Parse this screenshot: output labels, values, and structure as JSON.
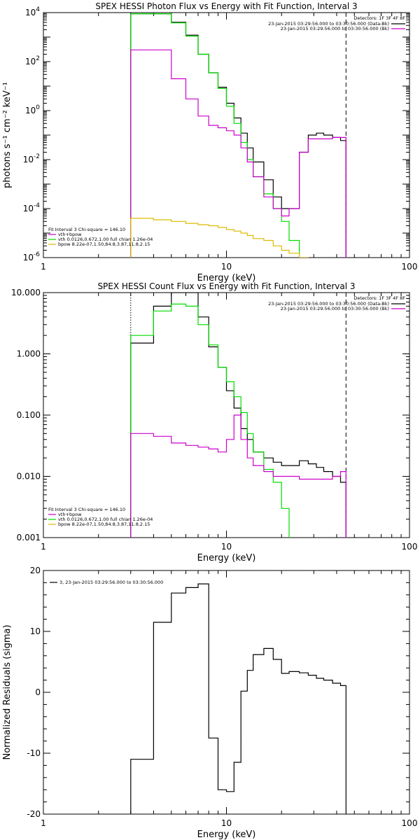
{
  "colors": {
    "total": "#000000",
    "vth": "#00dd00",
    "bpow": "#ddbb00",
    "bk": "#cc00cc",
    "fit": "#cc00cc"
  },
  "chart_data": [
    {
      "id": "photon",
      "type": "line",
      "title": "SPEX HESSI Photon Flux vs Energy with Fit Function, Interval 3",
      "xlabel": "Energy (keV)",
      "ylabel": "photons s⁻¹ cm⁻² keV⁻¹",
      "xscale": "log",
      "yscale": "log",
      "xlim": [
        1,
        100
      ],
      "ylim": [
        1e-06,
        10000.0
      ],
      "xticks": [
        {
          "v": 1,
          "t": "1"
        },
        {
          "v": 10,
          "t": "10"
        },
        {
          "v": 100,
          "t": "100"
        }
      ],
      "yticks": [
        {
          "v": 10000,
          "b": "10",
          "e": "4"
        },
        {
          "v": 100,
          "b": "10",
          "e": "2"
        },
        {
          "v": 1,
          "b": "10",
          "e": "0"
        },
        {
          "v": 0.01,
          "b": "10",
          "e": "-2"
        },
        {
          "v": 0.0001,
          "b": "10",
          "e": "-4"
        },
        {
          "v": 1e-06,
          "b": "10",
          "e": "-6"
        }
      ],
      "vlines": [
        {
          "x": 3,
          "style": "dotted"
        },
        {
          "x": 45,
          "style": "dashed"
        }
      ],
      "legend_tr": {
        "header": "Detectors: 1F 3F 4F 8F",
        "entries": [
          {
            "text": "23-Jan-2015 03:29:56.000 to 03:30:56.000 (Data-Bk)",
            "color": "#000000"
          },
          {
            "text": "23-Jan-2015 03:29:56.000 to 03:30:56.000 (Bk)",
            "color": "#cc00cc"
          }
        ]
      },
      "legend_bl": {
        "header": "Fit Interval 3   Chi-square = 146.10",
        "entries": [
          {
            "text": "vth+bpow",
            "color": "#cc00cc"
          },
          {
            "text": "vth 0.0126,0.672,1.00  full chian 1.26e-04",
            "color": "#00dd00"
          },
          {
            "text": "bpow 8.22e-07,1.50,84.8,3.87,11.8,2.15",
            "color": "#ddbb00"
          }
        ]
      },
      "edges": [
        3,
        4,
        5,
        6,
        7,
        8,
        9,
        10,
        11,
        12,
        13,
        14,
        16,
        18,
        20,
        22,
        25,
        28,
        31,
        34,
        38,
        42,
        45
      ],
      "series": [
        {
          "key": "data",
          "color": "#000000",
          "values": [
            9000,
            9000,
            4000,
            1200,
            200,
            35,
            9,
            2,
            0.5,
            0.12,
            0.03,
            0.008,
            0.0015,
            0.0003,
            0.0001,
            0.0001,
            0.02,
            0.1,
            0.12,
            0.1,
            0.08,
            0.06
          ]
        },
        {
          "key": "vth",
          "color": "#00dd00",
          "values": [
            9000,
            9000,
            3800,
            1100,
            200,
            35,
            8,
            1.5,
            0.3,
            0.05,
            0.01,
            0.002,
            0.0004,
            0.0001,
            3e-05,
            5e-06,
            1e-07
          ]
        },
        {
          "key": "bk",
          "color": "#cc00cc",
          "values": [
            300,
            300,
            20,
            3,
            0.6,
            0.25,
            0.2,
            0.15,
            0.1,
            0.03,
            0.008,
            0.002,
            0.0003,
            0.0001,
            5e-05,
            0.0001,
            0.02,
            0.07,
            0.07,
            0.07,
            0.08,
            0.08
          ]
        },
        {
          "key": "bpow",
          "color": "#ddbb00",
          "values": [
            4e-05,
            3.5e-05,
            3e-05,
            2.5e-05,
            2.2e-05,
            2e-05,
            1.7e-05,
            1.4e-05,
            1.2e-05,
            1e-05,
            8e-06,
            6e-06,
            5e-06,
            3e-06,
            2e-06,
            1.5e-06,
            1e-06
          ]
        }
      ]
    },
    {
      "id": "count",
      "type": "line",
      "title": "SPEX HESSI Count Flux vs Energy with Fit Function, Interval 3",
      "xlabel": "Energy (keV)",
      "ylabel": "",
      "xscale": "log",
      "yscale": "log",
      "xlim": [
        1,
        100
      ],
      "ylim": [
        0.001,
        10
      ],
      "xticks": [
        {
          "v": 1,
          "t": "1"
        },
        {
          "v": 10,
          "t": "10"
        },
        {
          "v": 100,
          "t": "100"
        }
      ],
      "yticks": [
        {
          "v": 10,
          "t": "10.000"
        },
        {
          "v": 1,
          "t": "1.000"
        },
        {
          "v": 0.1,
          "t": "0.100"
        },
        {
          "v": 0.01,
          "t": "0.010"
        },
        {
          "v": 0.001,
          "t": "0.001"
        }
      ],
      "vlines": [
        {
          "x": 3,
          "style": "dotted"
        },
        {
          "x": 45,
          "style": "dashed"
        }
      ],
      "legend_tr": {
        "header": "Detectors: 1F 3F 4F 8F",
        "entries": [
          {
            "text": "23-Jan-2015 03:29:56.000 to 03:30:56.000 (Data-Bk)",
            "color": "#000000"
          },
          {
            "text": "23-Jan-2015 03:29:56.000 to 03:30:56.000 (Bk)",
            "color": "#cc00cc"
          }
        ]
      },
      "legend_bl": {
        "header": "Fit Interval 3   Chi-square = 146.10",
        "entries": [
          {
            "text": "vth+bpow",
            "color": "#cc00cc"
          },
          {
            "text": "vth 0.0126,0.672,1.00  full chian 1.26e-04",
            "color": "#00dd00"
          },
          {
            "text": "bpow 8.22e-07,1.50,84.8,3.87,11.8,2.15",
            "color": "#ddbb00"
          }
        ]
      },
      "edges": [
        3,
        4,
        5,
        6,
        7,
        8,
        9,
        10,
        11,
        12,
        13,
        14,
        16,
        18,
        20,
        22,
        25,
        28,
        31,
        34,
        38,
        42,
        45
      ],
      "series": [
        {
          "key": "data",
          "color": "#000000",
          "values": [
            1.5,
            6,
            10,
            10,
            4,
            1.3,
            0.6,
            0.25,
            0.13,
            0.06,
            0.04,
            0.025,
            0.02,
            0.017,
            0.015,
            0.015,
            0.018,
            0.016,
            0.014,
            0.012,
            0.01,
            0.008
          ]
        },
        {
          "key": "vth",
          "color": "#00dd00",
          "values": [
            2,
            5,
            6.5,
            6,
            3,
            1.4,
            0.6,
            0.35,
            0.2,
            0.11,
            0.05,
            0.025,
            0.013,
            0.008,
            0.003,
            0.0005
          ]
        },
        {
          "key": "bk",
          "color": "#cc00cc",
          "values": [
            0.05,
            0.045,
            0.035,
            0.032,
            0.03,
            0.028,
            0.025,
            0.04,
            0.1,
            0.04,
            0.02,
            0.015,
            0.012,
            0.01,
            0.01,
            0.01,
            0.009,
            0.009,
            0.009,
            0.009,
            0.01,
            0.012
          ]
        }
      ]
    },
    {
      "id": "resid",
      "type": "line",
      "title": "",
      "xlabel": "Energy (keV)",
      "ylabel": "Normalized Residuals (sigma)",
      "xscale": "log",
      "yscale": "linear",
      "xlim": [
        1,
        100
      ],
      "ylim": [
        -20,
        20
      ],
      "xticks": [
        {
          "v": 1,
          "t": "1"
        },
        {
          "v": 10,
          "t": "10"
        },
        {
          "v": 100,
          "t": "100"
        }
      ],
      "yticks": [
        {
          "v": 20,
          "t": "20"
        },
        {
          "v": 10,
          "t": "10"
        },
        {
          "v": 0,
          "t": "0"
        },
        {
          "v": -10,
          "t": "-10"
        },
        {
          "v": -20,
          "t": "-20"
        }
      ],
      "legend_tl": {
        "entries": [
          {
            "text": "3, 23-Jan-2015 03:29:56.000 to 03:30:56.000",
            "color": "#000000"
          }
        ]
      },
      "edges": [
        3,
        4,
        5,
        6,
        7,
        8,
        9,
        10,
        11,
        12,
        13,
        14,
        16,
        18,
        20,
        22,
        25,
        28,
        31,
        34,
        38,
        42,
        45
      ],
      "series": [
        {
          "key": "resid",
          "color": "#000000",
          "values": [
            -11,
            11.5,
            16.3,
            17.2,
            17.8,
            -7.5,
            -16,
            -16.3,
            -11.5,
            0.2,
            3.6,
            6.2,
            7.2,
            5.4,
            3.1,
            3.4,
            3.2,
            2.8,
            2.3,
            2,
            1.5,
            1.1
          ]
        }
      ]
    }
  ]
}
